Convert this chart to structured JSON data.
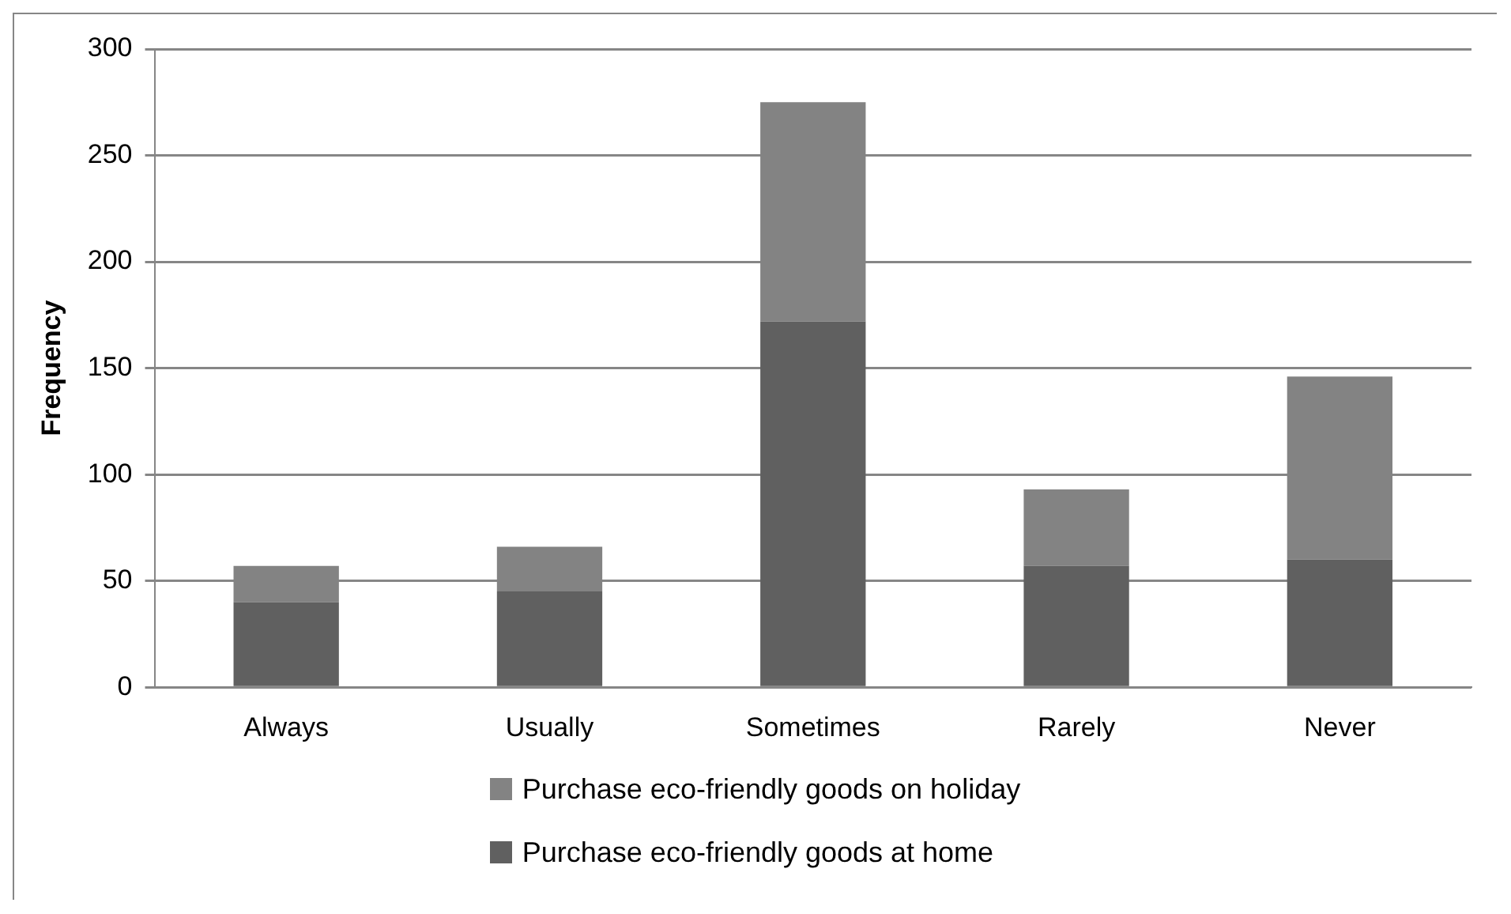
{
  "chart_data": {
    "type": "bar",
    "ylabel": "Frequency",
    "categories": [
      "Always",
      "Usually",
      "Sometimes",
      "Rarely",
      "Never"
    ],
    "series": [
      {
        "name": "Purchase eco-friendly goods at home",
        "color": "#606060",
        "values": [
          40,
          45,
          172,
          57,
          60
        ]
      },
      {
        "name": "Purchase eco-friendly goods on holiday",
        "color": "#838383",
        "values": [
          17,
          21,
          103,
          36,
          86
        ]
      }
    ],
    "stacked": true,
    "ylim": [
      0,
      300
    ],
    "yticks": [
      0,
      50,
      100,
      150,
      200,
      250,
      300
    ],
    "grid": "y",
    "legend": "bottom"
  }
}
